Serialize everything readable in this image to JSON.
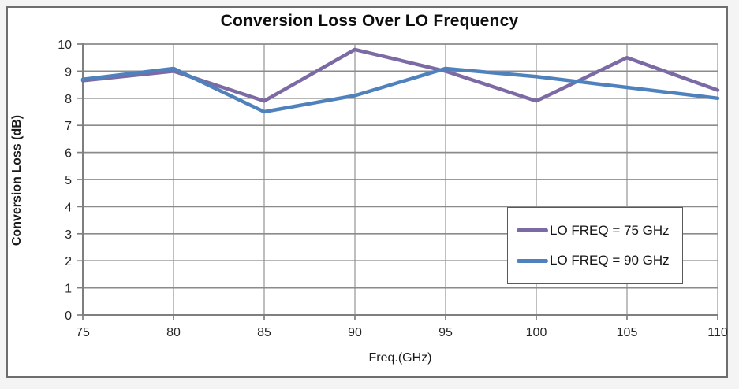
{
  "chart_data": {
    "type": "line",
    "title": "Conversion Loss Over LO Frequency",
    "xlabel": "Freq.(GHz)",
    "ylabel": "Conversion Loss (dB)",
    "x": [
      75,
      80,
      85,
      90,
      95,
      100,
      105,
      110
    ],
    "xlim": [
      75,
      110
    ],
    "ylim": [
      0,
      10
    ],
    "xticks": [
      75,
      80,
      85,
      90,
      95,
      100,
      105,
      110
    ],
    "yticks": [
      0,
      1,
      2,
      3,
      4,
      5,
      6,
      7,
      8,
      9,
      10
    ],
    "grid": true,
    "legend_position": "inside-right",
    "series": [
      {
        "name": "LO FREQ = 75 GHz",
        "color": "#7C6AA4",
        "values": [
          8.65,
          9.0,
          7.9,
          9.8,
          9.0,
          7.9,
          9.5,
          8.3
        ]
      },
      {
        "name": "LO FREQ = 90 GHz",
        "color": "#4F81BD",
        "values": [
          8.7,
          9.1,
          7.5,
          8.1,
          9.1,
          8.8,
          8.4,
          8.0
        ]
      }
    ]
  },
  "colors": {
    "grid_horizontal": "#8B8B8B",
    "grid_vertical": "#B4B4B4",
    "axis": "#7F7F7F",
    "frame_border": "#6E6E6E",
    "legend_border": "#595959",
    "tick_text": "#262626"
  }
}
